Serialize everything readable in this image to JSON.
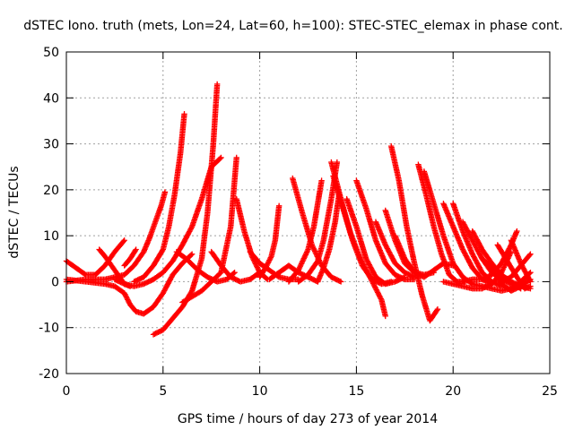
{
  "chart_data": {
    "type": "scatter",
    "title": "dSTEC Iono. truth (mets, Lon=24, Lat=60, h=100): STEC-STEC_elemax in phase cont.",
    "xlabel": "GPS time / hours of day 273 of year 2014",
    "ylabel": "dSTEC  / TECUs",
    "xlim": [
      0,
      25
    ],
    "ylim": [
      -20,
      50
    ],
    "x_ticks": [
      0,
      5,
      10,
      15,
      20,
      25
    ],
    "y_ticks": [
      -20,
      -10,
      0,
      10,
      20,
      30,
      40,
      50
    ],
    "grid": true,
    "legend": "none",
    "marker": "plus-cross",
    "marker_color": "#ff0000",
    "series": [
      {
        "x": [
          0.0,
          0.5,
          1.0,
          1.5,
          2.0,
          2.5,
          3.0
        ],
        "y": [
          4.5,
          3.0,
          1.5,
          1.5,
          3.5,
          6.5,
          9.0
        ]
      },
      {
        "x": [
          0.0,
          1.0,
          2.0,
          3.0,
          3.5,
          4.0,
          4.3,
          4.6,
          4.9,
          5.1
        ],
        "y": [
          0.0,
          0.5,
          0.5,
          1.5,
          3.5,
          6.5,
          9.5,
          13.0,
          16.5,
          19.5
        ]
      },
      {
        "x": [
          0.0,
          1.0,
          2.0,
          2.5,
          3.0,
          3.3,
          3.6,
          4.0,
          4.5,
          5.0,
          5.5,
          6.0,
          6.5
        ],
        "y": [
          0.5,
          0.0,
          -0.5,
          -1.0,
          -2.5,
          -5.0,
          -6.5,
          -7.0,
          -5.5,
          -2.5,
          1.5,
          4.0,
          6.0
        ]
      },
      {
        "x": [
          1.7,
          2.0,
          2.5,
          3.0,
          3.3
        ],
        "y": [
          7.0,
          5.5,
          2.5,
          -0.5,
          -1.0
        ]
      },
      {
        "x": [
          3.0,
          3.3,
          3.6
        ],
        "y": [
          3.5,
          5.0,
          7.0
        ]
      },
      {
        "x": [
          2.5,
          3.0,
          3.5,
          4.0,
          4.5,
          5.0,
          5.5,
          6.0,
          6.5,
          7.0,
          7.5,
          8.0
        ],
        "y": [
          0.5,
          -0.5,
          -1.0,
          -0.5,
          0.5,
          2.0,
          4.5,
          8.0,
          12.0,
          18.0,
          25.0,
          27.0
        ]
      },
      {
        "x": [
          3.5,
          4.0,
          4.5,
          5.0,
          5.3,
          5.6,
          5.9,
          6.1
        ],
        "y": [
          0.0,
          1.0,
          3.5,
          7.0,
          12.0,
          19.0,
          28.0,
          36.5
        ]
      },
      {
        "x": [
          4.5,
          5.0,
          5.5,
          6.0,
          6.5,
          7.0,
          7.3,
          7.6,
          7.8
        ],
        "y": [
          -11.5,
          -10.5,
          -8.0,
          -5.5,
          -2.0,
          5.0,
          15.0,
          30.0,
          43.0
        ]
      },
      {
        "x": [
          5.7,
          6.2,
          6.8,
          7.3,
          7.8,
          8.3,
          8.7
        ],
        "y": [
          6.5,
          5.0,
          2.5,
          1.0,
          0.0,
          0.5,
          2.0
        ]
      },
      {
        "x": [
          6.0,
          7.0,
          8.0,
          8.5,
          8.8
        ],
        "y": [
          -4.5,
          -2.0,
          2.0,
          12.0,
          27.0
        ]
      },
      {
        "x": [
          7.5,
          8.0,
          8.5,
          9.0,
          9.5,
          10.0
        ],
        "y": [
          6.5,
          3.5,
          1.0,
          0.0,
          0.5,
          2.0
        ]
      },
      {
        "x": [
          8.8,
          9.2,
          9.6,
          10.0,
          10.4
        ],
        "y": [
          18.0,
          11.0,
          5.5,
          2.0,
          0.5
        ]
      },
      {
        "x": [
          9.5,
          10.0,
          10.5,
          11.0,
          11.5,
          12.0
        ],
        "y": [
          6.5,
          4.0,
          2.5,
          1.0,
          0.5,
          0.5
        ]
      },
      {
        "x": [
          10.0,
          10.3,
          10.6,
          10.8,
          11.0
        ],
        "y": [
          1.0,
          3.0,
          5.5,
          9.0,
          16.5
        ]
      },
      {
        "x": [
          10.5,
          11.0,
          11.5,
          12.0,
          12.5,
          13.0
        ],
        "y": [
          0.5,
          2.0,
          3.5,
          2.0,
          1.0,
          0.0
        ]
      },
      {
        "x": [
          11.7,
          12.2,
          12.7,
          13.2,
          13.7,
          14.2
        ],
        "y": [
          22.5,
          15.0,
          8.0,
          3.5,
          1.0,
          0.0
        ]
      },
      {
        "x": [
          11.5,
          12.0,
          12.5,
          12.8,
          13.0,
          13.2
        ],
        "y": [
          0.0,
          2.5,
          7.0,
          12.0,
          17.0,
          22.0
        ]
      },
      {
        "x": [
          12.0,
          12.5,
          13.0,
          13.3,
          13.7,
          14.0
        ],
        "y": [
          0.0,
          1.5,
          4.5,
          9.0,
          18.0,
          26.0
        ]
      },
      {
        "x": [
          13.0,
          13.3,
          13.6,
          13.9,
          14.1
        ],
        "y": [
          0.0,
          3.0,
          7.0,
          13.0,
          19.0
        ]
      },
      {
        "x": [
          13.7,
          14.2,
          14.7,
          15.2,
          15.7,
          16.3,
          16.5
        ],
        "y": [
          26.0,
          18.0,
          10.5,
          5.0,
          1.0,
          -4.0,
          -7.5
        ]
      },
      {
        "x": [
          13.8,
          14.3,
          14.8,
          15.3,
          15.8,
          16.3,
          16.8
        ],
        "y": [
          23.0,
          16.0,
          9.0,
          3.5,
          0.5,
          -0.5,
          0.0
        ]
      },
      {
        "x": [
          14.5,
          15.0,
          15.5,
          16.0,
          16.5,
          17.0,
          17.5
        ],
        "y": [
          18.0,
          12.0,
          5.0,
          1.0,
          -0.5,
          0.0,
          1.0
        ]
      },
      {
        "x": [
          15.0,
          15.5,
          16.0,
          16.5,
          17.0,
          17.5,
          18.0
        ],
        "y": [
          22.0,
          16.0,
          9.0,
          4.0,
          1.5,
          0.5,
          0.5
        ]
      },
      {
        "x": [
          16.0,
          16.5,
          17.0,
          17.5,
          18.0
        ],
        "y": [
          13.0,
          8.0,
          4.0,
          2.0,
          1.0
        ]
      },
      {
        "x": [
          16.5,
          17.0,
          17.5,
          18.0,
          18.5,
          19.0
        ],
        "y": [
          15.5,
          9.0,
          4.0,
          2.0,
          1.5,
          2.0
        ]
      },
      {
        "x": [
          16.8,
          17.2,
          17.6,
          18.0,
          18.4,
          18.8,
          19.2
        ],
        "y": [
          29.5,
          22.0,
          12.0,
          4.0,
          -3.0,
          -8.5,
          -6.0
        ]
      },
      {
        "x": [
          17.0,
          17.5,
          18.0,
          18.5,
          19.0,
          19.5,
          20.0
        ],
        "y": [
          10.0,
          5.0,
          2.0,
          1.0,
          2.5,
          4.0,
          3.5
        ]
      },
      {
        "x": [
          18.2,
          18.6,
          19.0,
          19.4,
          19.8,
          20.2,
          20.6
        ],
        "y": [
          25.5,
          19.0,
          12.0,
          6.0,
          1.5,
          0.0,
          0.0
        ]
      },
      {
        "x": [
          18.5,
          19.0,
          19.5,
          20.0,
          20.5,
          21.0,
          21.5
        ],
        "y": [
          24.0,
          17.0,
          10.0,
          4.0,
          1.0,
          -0.5,
          -1.0
        ]
      },
      {
        "x": [
          19.5,
          20.0,
          20.5,
          21.0,
          21.5,
          22.0
        ],
        "y": [
          17.0,
          12.0,
          7.0,
          3.0,
          0.5,
          -0.5
        ]
      },
      {
        "x": [
          20.0,
          20.5,
          21.0,
          21.5,
          22.0,
          22.5
        ],
        "y": [
          17.0,
          11.0,
          6.0,
          2.0,
          0.0,
          -1.0
        ]
      },
      {
        "x": [
          20.5,
          21.0,
          21.5,
          22.0,
          22.5,
          23.0,
          23.5
        ],
        "y": [
          13.0,
          9.0,
          5.0,
          2.0,
          0.5,
          -0.5,
          -1.5
        ]
      },
      {
        "x": [
          21.0,
          21.5,
          22.0,
          22.5,
          23.0,
          23.5,
          24.0
        ],
        "y": [
          11.0,
          7.0,
          4.0,
          1.5,
          0.0,
          -1.0,
          -1.5
        ]
      },
      {
        "x": [
          19.5,
          20.0,
          20.5,
          21.0,
          21.5,
          22.0,
          22.5,
          23.0
        ],
        "y": [
          0.0,
          -0.5,
          -1.0,
          -1.5,
          -1.5,
          -0.5,
          2.0,
          6.5
        ]
      },
      {
        "x": [
          20.5,
          21.0,
          21.5,
          22.0,
          22.5,
          23.0,
          23.3
        ],
        "y": [
          0.0,
          0.5,
          0.5,
          1.5,
          4.0,
          8.0,
          11.0
        ]
      },
      {
        "x": [
          21.5,
          22.0,
          22.5,
          23.0,
          23.5,
          24.0
        ],
        "y": [
          5.0,
          3.0,
          -0.5,
          -2.0,
          -1.0,
          0.5
        ]
      },
      {
        "x": [
          22.3,
          22.8,
          23.3,
          23.7,
          24.0
        ],
        "y": [
          8.0,
          4.5,
          1.0,
          -1.5,
          -1.0
        ]
      },
      {
        "x": [
          23.0,
          23.5,
          24.0
        ],
        "y": [
          9.0,
          4.0,
          0.0
        ]
      },
      {
        "x": [
          22.5,
          23.0,
          23.5,
          24.0
        ],
        "y": [
          0.0,
          1.0,
          3.5,
          6.0
        ]
      },
      {
        "x": [
          21.5,
          22.0,
          22.5,
          23.0,
          23.5,
          24.0
        ],
        "y": [
          -1.0,
          -1.5,
          -2.0,
          -1.5,
          0.0,
          2.0
        ]
      }
    ]
  }
}
